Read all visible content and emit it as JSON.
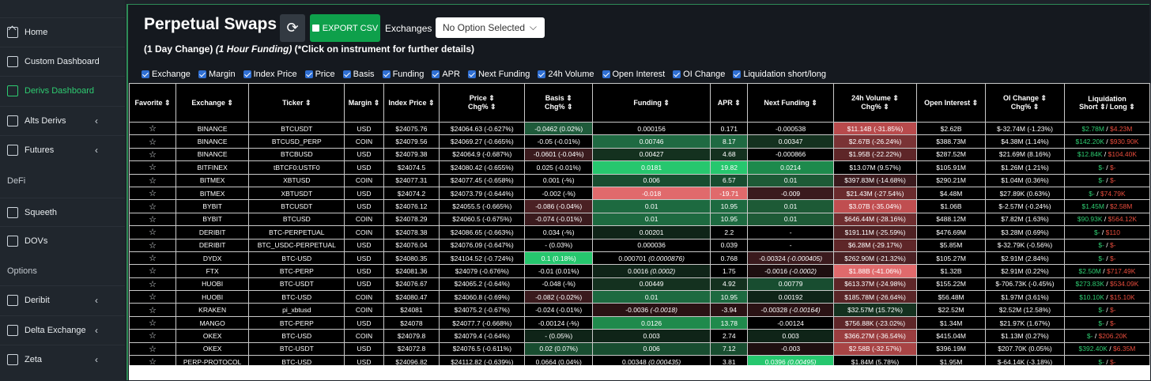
{
  "sidebar": {
    "items": [
      {
        "label": "Home",
        "icon": "home-icon",
        "chevron": false,
        "active": false
      },
      {
        "label": "Custom Dashboard",
        "icon": "bookmark-icon",
        "chevron": false,
        "active": false
      },
      {
        "label": "Derivs Dashboard",
        "icon": "table-icon",
        "chevron": false,
        "active": true
      },
      {
        "label": "Alts Derivs",
        "icon": "table-icon",
        "chevron": true,
        "active": false
      },
      {
        "label": "Futures",
        "icon": "table-icon",
        "chevron": true,
        "active": false
      },
      {
        "label": "Squeeth",
        "icon": "table-icon",
        "chevron": false,
        "active": false
      },
      {
        "label": "DOVs",
        "icon": "table-icon",
        "chevron": false,
        "active": false
      },
      {
        "label": "Deribit",
        "icon": "table-icon",
        "chevron": true,
        "active": false
      },
      {
        "label": "Delta Exchange",
        "icon": "table-icon",
        "chevron": true,
        "active": false
      },
      {
        "label": "Zeta",
        "icon": "table-icon",
        "chevron": true,
        "active": false
      }
    ],
    "sections": [
      "DeFi",
      "Options"
    ],
    "chevron": "‹",
    "accent": "#2ecc71"
  },
  "header": {
    "title": "Perpetual Swaps",
    "refresh_icon": "⟳",
    "export_label": "EXPORT CSV",
    "exchanges_label": "Exchanges",
    "exchanges_value": "No Option Selected",
    "select_chevron": "⌵",
    "subtitle_a": "(1 Day Change) ",
    "subtitle_b": "(1 Hour Funding)",
    "subtitle_c": " (*Click on instrument for further details)"
  },
  "toggles": [
    "Exchange",
    "Margin",
    "Index Price",
    "Price",
    "Basis",
    "Funding",
    "APR",
    "Next Funding",
    "24h Volume",
    "Open Interest",
    "OI Change",
    "Liquidation short/long"
  ],
  "table": {
    "star": "☆",
    "headers": [
      [
        "Favorite ⇕",
        ""
      ],
      [
        "Exchange ⇕",
        ""
      ],
      [
        "Ticker ⇕",
        ""
      ],
      [
        "Margin ⇕",
        ""
      ],
      [
        "Index Price ⇕",
        ""
      ],
      [
        "Price ⇕",
        "Chg% ⇕"
      ],
      [
        "Basis ⇕",
        "Chg% ⇕"
      ],
      [
        "Funding ⇕",
        ""
      ],
      [
        "APR ⇕",
        ""
      ],
      [
        "Next Funding ⇕",
        ""
      ],
      [
        "24h Volume ⇕",
        "Chg% ⇕"
      ],
      [
        "Open Interest ⇕",
        ""
      ],
      [
        "OI Change ⇕",
        "Chg% ⇕"
      ],
      [
        "Liquidation",
        "Short ⇕/ Long ⇕"
      ]
    ],
    "rows": [
      {
        "ex": "BINANCE",
        "tk": "BTCUSDT",
        "mg": "USD",
        "ip": "$24075.76",
        "pr": "$24064.63 (-0.627%)",
        "bs": "-0.0462 (0.02%)",
        "fd": "0.000156",
        "apr": "0.171",
        "nf": "-0.000538",
        "vol": "$11.14B (-31.85%)",
        "oi": "$2.62B",
        "oic": "$-32.74M (-1.23%)",
        "ls": "$2.78M",
        "ll": "$4.23M",
        "c": {
          "bs": "#1e5a3a",
          "fd": "",
          "apr": "",
          "nf": "",
          "vol": "#b84a4c"
        }
      },
      {
        "ex": "BINANCE",
        "tk": "BTCUSD_PERP",
        "mg": "COIN",
        "ip": "$24079.56",
        "pr": "$24069.27 (-0.665%)",
        "bs": "-0.05 (-0.01%)",
        "fd": "0.00746",
        "apr": "8.17",
        "nf": "0.00347",
        "vol": "$2.67B (-26.24%)",
        "oi": "$388.73M",
        "oic": "$4.38M (1.14%)",
        "ls": "$142.20K",
        "ll": "$930.90K",
        "c": {
          "bs": "",
          "fd": "#1f6a42",
          "apr": "#1f6a42",
          "nf": "#14311f",
          "vol": "#7a3335"
        }
      },
      {
        "ex": "BINANCE",
        "tk": "BTCBUSD",
        "mg": "USD",
        "ip": "$24079.38",
        "pr": "$24064.9 (-0.687%)",
        "bs": "-0.0601 (-0.04%)",
        "fd": "0.00427",
        "apr": "4.68",
        "nf": "-0.000866",
        "vol": "$1.95B (-22.22%)",
        "oi": "$287.52M",
        "oic": "$21.69M (8.16%)",
        "ls": "$12.84K",
        "ll": "$104.40K",
        "c": {
          "bs": "#3a1a1d",
          "fd": "#14311f",
          "apr": "#14311f",
          "nf": "",
          "vol": "#5e2628"
        }
      },
      {
        "ex": "BITFINEX",
        "tk": "tBTCF0:USTF0",
        "mg": "USD",
        "ip": "$24074.5",
        "pr": "$24080.42 (-0.655%)",
        "bs": "0.025 (-0.01%)",
        "fd": "0.0181",
        "apr": "19.82",
        "nf": "0.0214",
        "vol": "$13.07M (9.57%)",
        "oi": "$105.91M",
        "oic": "$1.26M (1.21%)",
        "ls": "$-",
        "ll": "$-",
        "c": {
          "bs": "",
          "fd": "#26c76e",
          "apr": "#26c76e",
          "nf": "#1d8a4c",
          "vol": ""
        }
      },
      {
        "ex": "BITMEX",
        "tk": "XBTUSD",
        "mg": "COIN",
        "ip": "$24077.31",
        "pr": "$24077.45 (-0.658%)",
        "bs": "0.001 (-%)",
        "fd": "0.006",
        "apr": "6.57",
        "nf": "0.01",
        "vol": "$397.83M (-14.68%)",
        "oi": "$290.21M",
        "oic": "$1.04M (0.36%)",
        "ls": "$-",
        "ll": "$-",
        "c": {
          "bs": "",
          "fd": "#184d30",
          "apr": "#184d30",
          "nf": "#1d5a36",
          "vol": "#3a1a1d"
        }
      },
      {
        "ex": "BITMEX",
        "tk": "XBTUSDT",
        "mg": "USD",
        "ip": "$24074.2",
        "pr": "$24073.79 (-0.644%)",
        "bs": "-0.002 (-%)",
        "fd": "-0.018",
        "apr": "-19.71",
        "nf": "-0.009",
        "vol": "$21.43M (-27.54%)",
        "oi": "$4.48M",
        "oic": "$27.89K (0.63%)",
        "ls": "$-",
        "ll": "$74.79K",
        "c": {
          "bs": "",
          "fd": "#e06a6c",
          "apr": "#e06a6c",
          "nf": "#3a1a1d",
          "vol": "#6a2b2d"
        }
      },
      {
        "ex": "BYBIT",
        "tk": "BTCUSDT",
        "mg": "USD",
        "ip": "$24076.12",
        "pr": "$24055.5 (-0.665%)",
        "bs": "-0.086 (-0.04%)",
        "fd": "0.01",
        "apr": "10.95",
        "nf": "0.01",
        "vol": "$3.07B (-35.04%)",
        "oi": "$1.06B",
        "oic": "$-2.57M (-0.24%)",
        "ls": "$1.45M",
        "ll": "$2.58M",
        "c": {
          "bs": "#4a2023",
          "fd": "#1d6a40",
          "apr": "#1d6a40",
          "nf": "#1d5a36",
          "vol": "#c04e50"
        }
      },
      {
        "ex": "BYBIT",
        "tk": "BTCUSD",
        "mg": "COIN",
        "ip": "$24078.29",
        "pr": "$24060.5 (-0.675%)",
        "bs": "-0.074 (-0.01%)",
        "fd": "0.01",
        "apr": "10.95",
        "nf": "0.01",
        "vol": "$646.44M (-28.16%)",
        "oi": "$488.12M",
        "oic": "$7.82M (1.63%)",
        "ls": "$90.93K",
        "ll": "$564.12K",
        "c": {
          "bs": "#3a1a1d",
          "fd": "#1d6a40",
          "apr": "#1d6a40",
          "nf": "#1d5a36",
          "vol": "#6e2d2f"
        }
      },
      {
        "ex": "DERIBIT",
        "tk": "BTC-PERPETUAL",
        "mg": "COIN",
        "ip": "$24078.38",
        "pr": "$24086.65 (-0.663%)",
        "bs": "0.034 (-%)",
        "fd": "0.00201",
        "apr": "2.2",
        "nf": "-",
        "vol": "$191.11M (-25.59%)",
        "oi": "$476.69M",
        "oic": "$3.28M (0.69%)",
        "ls": "$-",
        "ll": "$110",
        "c": {
          "bs": "",
          "fd": "#0f2418",
          "apr": "",
          "nf": "",
          "vol": "#4e2123"
        }
      },
      {
        "ex": "DERIBIT",
        "tk": "BTC_USDC-PERPETUAL",
        "mg": "USD",
        "ip": "$24076.04",
        "pr": "$24076.09 (-0.647%)",
        "bs": "- (0.03%)",
        "fd": "0.000036",
        "apr": "0.039",
        "nf": "-",
        "vol": "$6.28M (-29.17%)",
        "oi": "$5.85M",
        "oic": "$-32.79K (-0.56%)",
        "ls": "$-",
        "ll": "$-",
        "c": {
          "bs": "",
          "fd": "",
          "apr": "",
          "nf": "",
          "vol": "#5e2628"
        }
      },
      {
        "ex": "DYDX",
        "tk": "BTC-USD",
        "mg": "USD",
        "ip": "$24080.35",
        "pr": "$24104.52 (-0.724%)",
        "bs": "0.1 (0.18%)",
        "fd": "0.000701",
        "fdi": " (0.0000876)",
        "apr": "0.768",
        "nf": "-0.00324",
        "nfi": " (-0.000405)",
        "vol": "$262.90M (-21.32%)",
        "oi": "$105.27M",
        "oic": "$2.91M (2.84%)",
        "ls": "$-",
        "ll": "$-",
        "c": {
          "bs": "#26c76e",
          "fd": "",
          "apr": "",
          "nf": "#3a1a1d",
          "vol": "#4a2023"
        }
      },
      {
        "ex": "FTX",
        "tk": "BTC-PERP",
        "mg": "USD",
        "ip": "$24081.36",
        "pr": "$24079 (-0.676%)",
        "bs": "-0.01 (0.01%)",
        "fd": "0.0016",
        "fdi": " (0.0002)",
        "apr": "1.75",
        "nf": "-0.0016",
        "nfi": " (-0.0002)",
        "vol": "$1.88B (-41.06%)",
        "oi": "$1.32B",
        "oic": "$2.91M (0.22%)",
        "ls": "$2.50M",
        "ll": "$717.49K",
        "c": {
          "bs": "",
          "fd": "#0f2418",
          "apr": "",
          "nf": "#1e0f10",
          "vol": "#e06a6c"
        }
      },
      {
        "ex": "HUOBI",
        "tk": "BTC-USDT",
        "mg": "USD",
        "ip": "$24076.67",
        "pr": "$24065.2 (-0.64%)",
        "bs": "-0.048 (-%)",
        "fd": "0.00449",
        "apr": "4.92",
        "nf": "0.00779",
        "vol": "$613.37M (-24.98%)",
        "oi": "$155.22M",
        "oic": "$-706.73K (-0.45%)",
        "ls": "$273.83K",
        "ll": "$534.09K",
        "c": {
          "bs": "",
          "fd": "#14311f",
          "apr": "#14311f",
          "nf": "#184d30",
          "vol": "#5e2628"
        }
      },
      {
        "ex": "HUOBI",
        "tk": "BTC-USD",
        "mg": "COIN",
        "ip": "$24080.47",
        "pr": "$24060.8 (-0.69%)",
        "bs": "-0.082 (-0.02%)",
        "fd": "0.01",
        "apr": "10.95",
        "nf": "0.00192",
        "vol": "$185.78M (-26.64%)",
        "oi": "$56.48M",
        "oic": "$1.97M (3.61%)",
        "ls": "$10.10K",
        "ll": "$15.10K",
        "c": {
          "bs": "#3a1a1d",
          "fd": "#1d6a40",
          "apr": "#1d6a40",
          "nf": "#0f2418",
          "vol": "#5a2527"
        }
      },
      {
        "ex": "KRAKEN",
        "tk": "pi_xbtusd",
        "mg": "COIN",
        "ip": "$24081",
        "pr": "$24075.2 (-0.67%)",
        "bs": "-0.024 (-0.01%)",
        "fd": "-0.0036",
        "fdi": " (-0.0018)",
        "apr": "-3.94",
        "nf": "-0.00328",
        "nfi": " (-0.00164)",
        "vol": "$32.57M (15.72%)",
        "oi": "$22.52M",
        "oic": "$2.52M (12.58%)",
        "ls": "$-",
        "ll": "$-",
        "c": {
          "bs": "",
          "fd": "#2a1214",
          "apr": "#2a1214",
          "nf": "#2a1214",
          "vol": "#14311f"
        }
      },
      {
        "ex": "MANGO",
        "tk": "BTC-PERP",
        "mg": "USD",
        "ip": "$24078",
        "pr": "$24077.7 (-0.668%)",
        "bs": "-0.00124 (-%)",
        "fd": "0.0126",
        "apr": "13.78",
        "nf": "-0.00124",
        "vol": "$756.88K (-23.02%)",
        "oi": "$1.34M",
        "oic": "$21.97K (1.67%)",
        "ls": "$-",
        "ll": "$-",
        "c": {
          "bs": "",
          "fd": "#1f8a4c",
          "apr": "#1f8a4c",
          "nf": "",
          "vol": "#5e2628"
        }
      },
      {
        "ex": "OKEX",
        "tk": "BTC-USD",
        "mg": "COIN",
        "ip": "$24079.8",
        "pr": "$24079.4 (-0.64%)",
        "bs": "- (0.05%)",
        "fd": "0.003",
        "apr": "2.74",
        "nf": "0.003",
        "vol": "$366.27M (-36.54%)",
        "oi": "$415.04M",
        "oic": "$1.13M (0.27%)",
        "ls": "$-",
        "ll": "$206.20K",
        "c": {
          "bs": "#0f2418",
          "fd": "#0f2418",
          "apr": "",
          "nf": "#0f2418",
          "vol": "#9a3d3f"
        }
      },
      {
        "ex": "OKEX",
        "tk": "BTC-USDT",
        "mg": "USD",
        "ip": "$24072.8",
        "pr": "$24076.5 (-0.611%)",
        "bs": "0.02 (0.07%)",
        "fd": "0.006",
        "apr": "7.12",
        "nf": "-0.003",
        "vol": "$2.58B (-32.57%)",
        "oi": "$396.19M",
        "oic": "$207.70K (0.05%)",
        "ls": "$392.40K",
        "ll": "$6.35M",
        "c": {
          "bs": "#184d30",
          "fd": "#184d30",
          "apr": "#184d30",
          "nf": "#1e0f10",
          "vol": "#a84445"
        }
      },
      {
        "ex": "PERP-PROTOCOL",
        "tk": "BTC-USD",
        "mg": "USD",
        "ip": "$24096.82",
        "pr": "$24112.82 (-0.639%)",
        "bs": "0.0664 (0.04%)",
        "fd": "0.00348",
        "fdi": " (0.000435)",
        "apr": "3.81",
        "nf": "0.0396",
        "nfi": " (0.00495)",
        "vol": "$1.84M (5.78%)",
        "oi": "$1.95M",
        "oic": "$-64.14K (-3.18%)",
        "ls": "$-",
        "ll": "$-",
        "c": {
          "bs": "",
          "fd": "",
          "apr": "",
          "nf": "#26c76e",
          "vol": ""
        }
      }
    ]
  }
}
